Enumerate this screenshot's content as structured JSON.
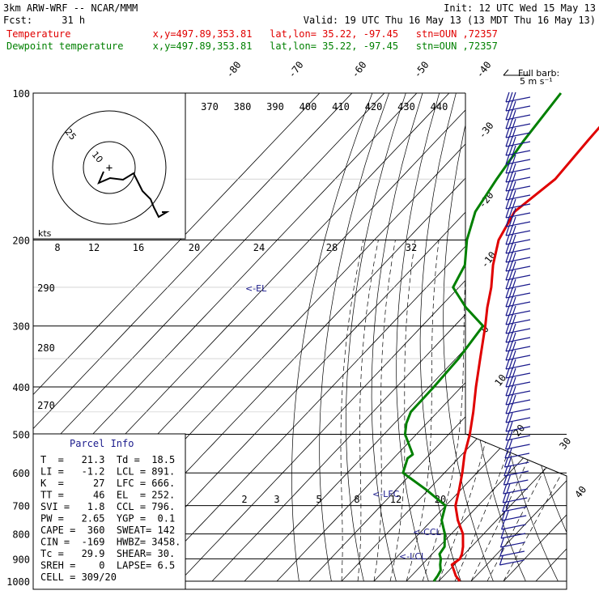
{
  "header": {
    "model": "3km ARW-WRF -- NCAR/MMM",
    "fcst_label": "Fcst:",
    "fcst_value": "31 h",
    "init": "Init: 12 UTC Wed 15 May 13",
    "valid": "Valid: 19 UTC Thu 16 May 13 (13 MDT Thu 16 May 13)",
    "temp_label": "Temperature",
    "temp_info": "x,y=497.89,353.81   lat,lon= 35.22, -97.45   stn=OUN ,72357",
    "dew_label": "Dewpoint temperature",
    "dew_info": "x,y=497.89,353.81   lat,lon= 35.22, -97.45   stn=OUN ,72357"
  },
  "colors": {
    "temperature": "#e00000",
    "dewpoint": "#008000",
    "wind": "#1a1a8c",
    "annotation": "#1a1a8c"
  },
  "barb_legend": {
    "line1": "Full barb:",
    "line2": "5 m s⁻¹"
  },
  "parcel_info": {
    "title": "Parcel Info",
    "rows": [
      "T  =   21.3  Td =  18.5",
      "LI =   -1.2  LCL = 891.",
      "K  =     27  LFC = 666.",
      "TT =     46  EL  = 252.",
      "SVI =   1.8  CCL = 796.",
      "PW =   2.65  YGP =  0.1",
      "CAPE =  360  SWEAT= 142",
      "CIN =  -169  HWBZ= 3458.",
      "Tc =   29.9  SHEAR= 30.",
      "SREH =    0  LAPSE= 6.5",
      "CELL = 309/20"
    ]
  },
  "hodograph": {
    "units": "kts",
    "ring_labels": [
      "10",
      "25"
    ]
  },
  "levels": {
    "el": "<-EL",
    "lfc": "<-LFC",
    "ccl": "<-CCL",
    "lcl": "<-LCL"
  },
  "chart_data": {
    "type": "line",
    "title": "",
    "xlabel": "",
    "ylabel": "",
    "y_axis": "pressure (hPa), log scale",
    "ylim": [
      1000,
      100
    ],
    "pressure_ticks": [
      "100",
      "200",
      "300",
      "400",
      "500",
      "600",
      "700",
      "800",
      "900",
      "1000"
    ],
    "isotherm_labels": [
      "-80",
      "-70",
      "-60",
      "-50",
      "-40",
      "-30",
      "-20",
      "-10",
      "0",
      "10",
      "20",
      "30",
      "40"
    ],
    "theta_labels": [
      "370",
      "380",
      "390",
      "400",
      "410",
      "420",
      "430",
      "440"
    ],
    "theta_left_labels": [
      "290",
      "280",
      "270"
    ],
    "mixing_ratio_labels": [
      "8",
      "12",
      "16",
      "20",
      "24",
      "28",
      "32"
    ],
    "mixing_ratio_labels_low": [
      "2",
      "3",
      "5",
      "8",
      "12",
      "20"
    ],
    "series": [
      {
        "name": "Temperature",
        "pressure": [
          1000,
          975,
          950,
          925,
          900,
          880,
          850,
          800,
          750,
          700,
          650,
          600,
          550,
          500,
          450,
          400,
          350,
          300,
          275,
          250,
          225,
          200,
          175,
          150,
          125,
          100
        ],
        "values": [
          26.5,
          23.7,
          21.5,
          19.2,
          20.0,
          19.2,
          17.4,
          13.6,
          8.0,
          3.0,
          -0.5,
          -4.5,
          -9.2,
          -13.5,
          -19.0,
          -25.5,
          -32.5,
          -40.5,
          -45.3,
          -50.0,
          -56.0,
          -61.6,
          -65.0,
          -62.0,
          -63.2,
          -64.4
        ]
      },
      {
        "name": "Dewpoint temperature",
        "pressure": [
          1000,
          975,
          950,
          925,
          900,
          880,
          850,
          800,
          750,
          700,
          650,
          600,
          560,
          550,
          500,
          475,
          450,
          400,
          350,
          300,
          275,
          250,
          225,
          200,
          175,
          150,
          125,
          100
        ],
        "values": [
          18.5,
          18.1,
          17.4,
          15.6,
          14.1,
          12.3,
          11.7,
          8.0,
          3.0,
          -0.1,
          -10.6,
          -22.8,
          -25.7,
          -25.2,
          -33.5,
          -36.3,
          -38.3,
          -38.5,
          -39.2,
          -41.2,
          -51.9,
          -61.8,
          -64.7,
          -71.4,
          -77.1,
          -80.1,
          -83.0,
          -85.5
        ]
      }
    ]
  }
}
